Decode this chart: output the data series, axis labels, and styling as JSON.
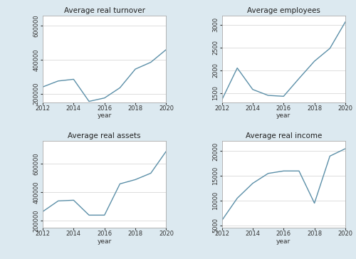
{
  "years": [
    2012,
    2013,
    2014,
    2015,
    2016,
    2017,
    2018,
    2019,
    2020
  ],
  "turnover": [
    240000,
    275000,
    285000,
    155000,
    175000,
    235000,
    345000,
    385000,
    460000
  ],
  "employees": [
    1350,
    2050,
    1580,
    1450,
    1430,
    1820,
    2200,
    2480,
    3060
  ],
  "assets": [
    265000,
    340000,
    345000,
    240000,
    240000,
    460000,
    490000,
    535000,
    690000
  ],
  "income": [
    6000,
    10500,
    13500,
    15500,
    16000,
    16000,
    9500,
    19000,
    20500
  ],
  "titles": [
    "Average real turnover",
    "Average employees",
    "Average real assets",
    "Average real income"
  ],
  "xlabel": "year",
  "line_color": "#5b8fa8",
  "bg_color": "#dce9f0",
  "plot_bg_color": "#ffffff",
  "grid_color": "#d0d0d0",
  "turnover_ylim": [
    150000,
    660000
  ],
  "turnover_yticks": [
    200000,
    400000,
    600000
  ],
  "employees_ylim": [
    1300,
    3200
  ],
  "employees_yticks": [
    1500,
    2000,
    2500,
    3000
  ],
  "assets_ylim": [
    150000,
    760000
  ],
  "assets_yticks": [
    200000,
    400000,
    600000
  ],
  "income_ylim": [
    4500,
    22000
  ],
  "income_yticks": [
    5000,
    10000,
    15000,
    20000
  ]
}
